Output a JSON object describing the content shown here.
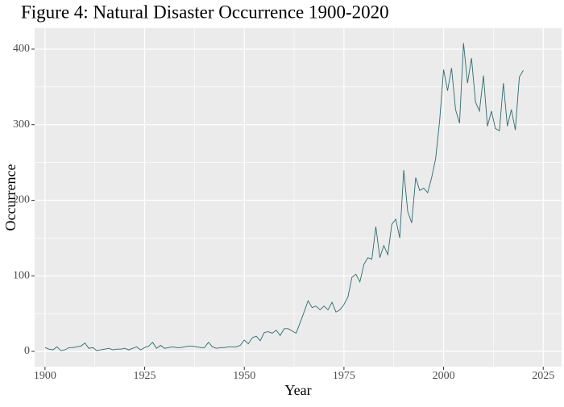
{
  "chart_data": {
    "type": "line",
    "title": "Figure 4: Natural Disaster Occurrence 1900-2020",
    "xlabel": "Year",
    "ylabel": "Occurrence",
    "x": [
      1900,
      1901,
      1902,
      1903,
      1904,
      1905,
      1906,
      1907,
      1908,
      1909,
      1910,
      1911,
      1912,
      1913,
      1914,
      1915,
      1916,
      1917,
      1918,
      1919,
      1920,
      1921,
      1922,
      1923,
      1924,
      1925,
      1926,
      1927,
      1928,
      1929,
      1930,
      1931,
      1932,
      1933,
      1934,
      1935,
      1936,
      1937,
      1938,
      1939,
      1940,
      1941,
      1942,
      1943,
      1944,
      1945,
      1946,
      1947,
      1948,
      1949,
      1950,
      1951,
      1952,
      1953,
      1954,
      1955,
      1956,
      1957,
      1958,
      1959,
      1960,
      1961,
      1962,
      1963,
      1964,
      1965,
      1966,
      1967,
      1968,
      1969,
      1970,
      1971,
      1972,
      1973,
      1974,
      1975,
      1976,
      1977,
      1978,
      1979,
      1980,
      1981,
      1982,
      1983,
      1984,
      1985,
      1986,
      1987,
      1988,
      1989,
      1990,
      1991,
      1992,
      1993,
      1994,
      1995,
      1996,
      1997,
      1998,
      1999,
      2000,
      2001,
      2002,
      2003,
      2004,
      2005,
      2006,
      2007,
      2008,
      2009,
      2010,
      2011,
      2012,
      2013,
      2014,
      2015,
      2016,
      2017,
      2018,
      2019,
      2020
    ],
    "series": [
      {
        "name": "Occurrence",
        "color": "#2f6b6b",
        "values": [
          5,
          3,
          2,
          6,
          1,
          2,
          5,
          5,
          6,
          7,
          11,
          4,
          5,
          1,
          2,
          3,
          4,
          2,
          3,
          3,
          4,
          2,
          4,
          6,
          2,
          5,
          7,
          12,
          4,
          8,
          4,
          5,
          6,
          5,
          5,
          6,
          7,
          7,
          6,
          5,
          5,
          12,
          6,
          4,
          5,
          5,
          6,
          6,
          6,
          8,
          15,
          10,
          18,
          20,
          14,
          25,
          26,
          24,
          28,
          21,
          30,
          30,
          27,
          24,
          38,
          52,
          67,
          58,
          60,
          55,
          60,
          55,
          65,
          52,
          55,
          62,
          72,
          98,
          102,
          92,
          115,
          124,
          122,
          165,
          124,
          140,
          128,
          168,
          175,
          150,
          240,
          185,
          170,
          230,
          213,
          216,
          210,
          230,
          255,
          305,
          373,
          345,
          375,
          320,
          302,
          408,
          355,
          388,
          330,
          318,
          365,
          298,
          318,
          295,
          292,
          355,
          298,
          320,
          293,
          363,
          372
        ]
      }
    ],
    "xlim": [
      1897.4,
      2029.6
    ],
    "ylim": [
      -20.3,
      427.7
    ],
    "xticks": [
      1900,
      1925,
      1950,
      1975,
      2000,
      2025
    ],
    "yticks": [
      0,
      100,
      200,
      300,
      400
    ],
    "grid": true
  }
}
